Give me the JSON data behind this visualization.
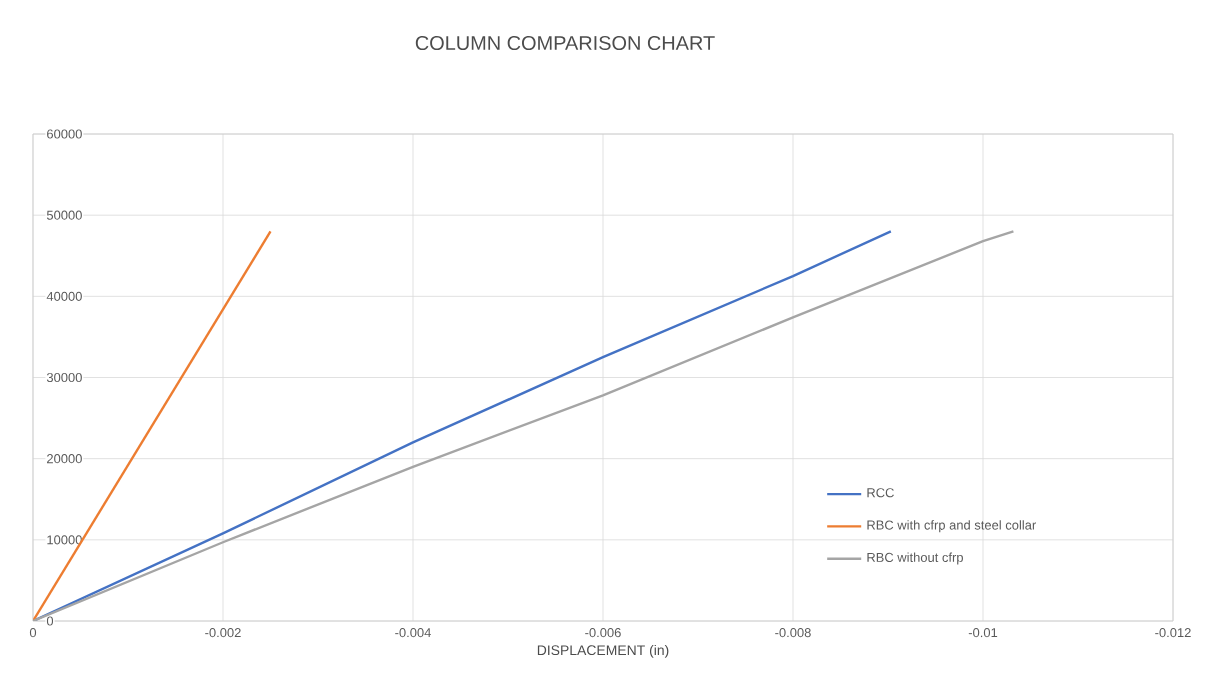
{
  "chart_data": {
    "type": "line",
    "title": "COLUMN COMPARISON CHART",
    "xlabel": "DISPLACEMENT  (in)",
    "xlim": [
      0,
      -0.012
    ],
    "xticks": [
      0,
      -0.002,
      -0.004,
      -0.006,
      -0.008,
      -0.01,
      -0.012
    ],
    "ylim": [
      0,
      60000
    ],
    "yticks": [
      0,
      10000,
      20000,
      30000,
      40000,
      50000,
      60000
    ],
    "grid": true,
    "legend": "bottom right",
    "marker": "none",
    "line_style": "solid",
    "series": [
      {
        "name": "RCC",
        "color": "#4472c4",
        "x": [
          0,
          -0.002,
          -0.004,
          -0.006,
          -0.008,
          -0.00903
        ],
        "values": [
          0,
          10800,
          22000,
          32500,
          42500,
          48000
        ]
      },
      {
        "name": "RBC with cfrp and steel collar",
        "color": "#ed7d31",
        "x": [
          0,
          -0.0025
        ],
        "values": [
          0,
          48000
        ]
      },
      {
        "name": "RBC without cfrp",
        "color": "#a5a5a5",
        "x": [
          0,
          -0.002,
          -0.004,
          -0.006,
          -0.008,
          -0.01,
          -0.01032
        ],
        "values": [
          0,
          9700,
          19000,
          27800,
          37400,
          46800,
          48000
        ]
      }
    ]
  }
}
